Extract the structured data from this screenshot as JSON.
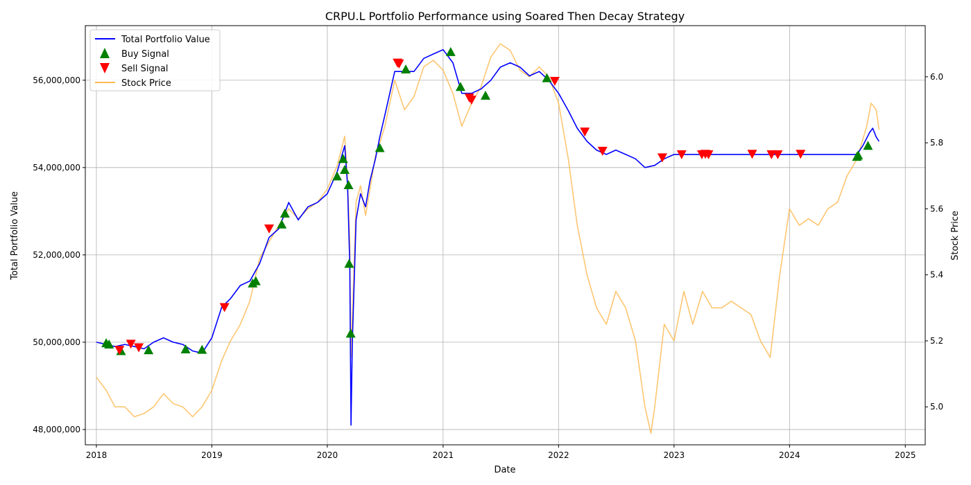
{
  "chart_data": {
    "type": "line",
    "title": "CRPU.L Portfolio Performance using Soared Then Decay Strategy",
    "xlabel": "Date",
    "ylabel_left": "Total Portfolio Value",
    "ylabel_right": "Stock Price",
    "x_range": [
      "2017-11-27",
      "2025-03-05"
    ],
    "y_left_range": [
      47650000,
      57250000
    ],
    "y_right_range": [
      4.885,
      6.155
    ],
    "x_ticks": [
      "2018",
      "2019",
      "2020",
      "2021",
      "2022",
      "2023",
      "2024",
      "2025"
    ],
    "y_left_ticks": [
      48000000,
      50000000,
      52000000,
      54000000,
      56000000
    ],
    "y_left_tick_labels": [
      "48,000,000",
      "50,000,000",
      "52,000,000",
      "54,000,000",
      "56,000,000"
    ],
    "y_right_ticks": [
      5.0,
      5.2,
      5.4,
      5.6,
      5.8,
      6.0
    ],
    "y_right_tick_labels": [
      "5.0",
      "5.2",
      "5.4",
      "5.6",
      "5.8",
      "6.0"
    ],
    "grid": true,
    "legend_position": "top-left",
    "legend": [
      "Total Portfolio Value",
      "Buy Signal",
      "Sell Signal",
      "Stock Price"
    ],
    "series": [
      {
        "name": "Total Portfolio Value",
        "axis": "left",
        "color": "#0000ff",
        "points": [
          [
            "2018-01-01",
            50000000
          ],
          [
            "2018-02-01",
            49950000
          ],
          [
            "2018-03-01",
            49900000
          ],
          [
            "2018-04-01",
            49950000
          ],
          [
            "2018-05-01",
            49900000
          ],
          [
            "2018-06-01",
            49850000
          ],
          [
            "2018-07-01",
            50000000
          ],
          [
            "2018-08-01",
            50100000
          ],
          [
            "2018-09-01",
            50000000
          ],
          [
            "2018-10-01",
            49950000
          ],
          [
            "2018-11-01",
            49800000
          ],
          [
            "2018-12-01",
            49750000
          ],
          [
            "2019-01-01",
            50100000
          ],
          [
            "2019-02-01",
            50800000
          ],
          [
            "2019-03-01",
            51000000
          ],
          [
            "2019-04-01",
            51300000
          ],
          [
            "2019-05-01",
            51400000
          ],
          [
            "2019-06-01",
            51800000
          ],
          [
            "2019-07-01",
            52400000
          ],
          [
            "2019-08-01",
            52600000
          ],
          [
            "2019-09-01",
            53200000
          ],
          [
            "2019-10-01",
            52800000
          ],
          [
            "2019-11-01",
            53100000
          ],
          [
            "2019-12-01",
            53200000
          ],
          [
            "2020-01-01",
            53400000
          ],
          [
            "2020-02-01",
            53900000
          ],
          [
            "2020-02-25",
            54500000
          ],
          [
            "2020-03-05",
            53600000
          ],
          [
            "2020-03-12",
            51800000
          ],
          [
            "2020-03-16",
            48100000
          ],
          [
            "2020-03-20",
            50000000
          ],
          [
            "2020-04-01",
            52800000
          ],
          [
            "2020-04-15",
            53400000
          ],
          [
            "2020-05-01",
            53100000
          ],
          [
            "2020-05-15",
            53700000
          ],
          [
            "2020-06-01",
            54200000
          ],
          [
            "2020-06-15",
            54700000
          ],
          [
            "2020-07-01",
            55200000
          ],
          [
            "2020-08-01",
            56200000
          ],
          [
            "2020-09-01",
            56200000
          ],
          [
            "2020-10-01",
            56200000
          ],
          [
            "2020-11-01",
            56500000
          ],
          [
            "2020-12-01",
            56600000
          ],
          [
            "2021-01-01",
            56700000
          ],
          [
            "2021-02-01",
            56400000
          ],
          [
            "2021-03-01",
            55700000
          ],
          [
            "2021-04-01",
            55700000
          ],
          [
            "2021-05-01",
            55800000
          ],
          [
            "2021-06-01",
            56000000
          ],
          [
            "2021-07-01",
            56300000
          ],
          [
            "2021-08-01",
            56400000
          ],
          [
            "2021-09-01",
            56300000
          ],
          [
            "2021-10-01",
            56100000
          ],
          [
            "2021-11-01",
            56200000
          ],
          [
            "2021-12-01",
            56000000
          ],
          [
            "2022-01-01",
            55700000
          ],
          [
            "2022-02-01",
            55300000
          ],
          [
            "2022-03-01",
            54900000
          ],
          [
            "2022-04-01",
            54600000
          ],
          [
            "2022-05-01",
            54400000
          ],
          [
            "2022-06-01",
            54300000
          ],
          [
            "2022-07-01",
            54400000
          ],
          [
            "2022-08-01",
            54300000
          ],
          [
            "2022-09-01",
            54200000
          ],
          [
            "2022-10-01",
            54000000
          ],
          [
            "2022-11-01",
            54050000
          ],
          [
            "2022-12-01",
            54200000
          ],
          [
            "2023-01-01",
            54300000
          ],
          [
            "2023-06-01",
            54300000
          ],
          [
            "2024-01-01",
            54300000
          ],
          [
            "2024-08-01",
            54300000
          ],
          [
            "2024-08-20",
            54500000
          ],
          [
            "2024-09-10",
            54800000
          ],
          [
            "2024-09-20",
            54900000
          ],
          [
            "2024-10-01",
            54700000
          ],
          [
            "2024-10-10",
            54600000
          ]
        ]
      },
      {
        "name": "Stock Price",
        "axis": "right",
        "color": "#fdb84d",
        "points": [
          [
            "2018-01-01",
            5.09
          ],
          [
            "2018-02-01",
            5.05
          ],
          [
            "2018-03-01",
            5.0
          ],
          [
            "2018-04-01",
            5.0
          ],
          [
            "2018-05-01",
            4.97
          ],
          [
            "2018-06-01",
            4.98
          ],
          [
            "2018-07-01",
            5.0
          ],
          [
            "2018-08-01",
            5.04
          ],
          [
            "2018-09-01",
            5.01
          ],
          [
            "2018-10-01",
            5.0
          ],
          [
            "2018-11-01",
            4.97
          ],
          [
            "2018-12-01",
            5.0
          ],
          [
            "2019-01-01",
            5.05
          ],
          [
            "2019-02-01",
            5.14
          ],
          [
            "2019-03-01",
            5.2
          ],
          [
            "2019-04-01",
            5.25
          ],
          [
            "2019-05-01",
            5.32
          ],
          [
            "2019-06-01",
            5.45
          ],
          [
            "2019-07-01",
            5.5
          ],
          [
            "2019-08-01",
            5.55
          ],
          [
            "2019-09-01",
            5.6
          ],
          [
            "2019-10-01",
            5.57
          ],
          [
            "2019-11-01",
            5.6
          ],
          [
            "2019-12-01",
            5.62
          ],
          [
            "2020-01-01",
            5.66
          ],
          [
            "2020-02-01",
            5.73
          ],
          [
            "2020-02-25",
            5.82
          ],
          [
            "2020-03-05",
            5.69
          ],
          [
            "2020-03-12",
            5.5
          ],
          [
            "2020-03-16",
            5.15
          ],
          [
            "2020-03-20",
            5.27
          ],
          [
            "2020-04-01",
            5.62
          ],
          [
            "2020-04-15",
            5.67
          ],
          [
            "2020-05-01",
            5.58
          ],
          [
            "2020-05-15",
            5.66
          ],
          [
            "2020-06-01",
            5.76
          ],
          [
            "2020-06-15",
            5.8
          ],
          [
            "2020-07-01",
            5.85
          ],
          [
            "2020-08-01",
            5.99
          ],
          [
            "2020-09-01",
            5.9
          ],
          [
            "2020-10-01",
            5.94
          ],
          [
            "2020-11-01",
            6.03
          ],
          [
            "2020-12-01",
            6.05
          ],
          [
            "2021-01-01",
            6.02
          ],
          [
            "2021-02-01",
            5.95
          ],
          [
            "2021-03-01",
            5.85
          ],
          [
            "2021-04-01",
            5.92
          ],
          [
            "2021-05-01",
            5.97
          ],
          [
            "2021-06-01",
            6.06
          ],
          [
            "2021-07-01",
            6.1
          ],
          [
            "2021-08-01",
            6.08
          ],
          [
            "2021-09-01",
            6.02
          ],
          [
            "2021-10-01",
            6.0
          ],
          [
            "2021-11-01",
            6.03
          ],
          [
            "2021-12-01",
            6.0
          ],
          [
            "2022-01-01",
            5.92
          ],
          [
            "2022-02-01",
            5.75
          ],
          [
            "2022-03-01",
            5.55
          ],
          [
            "2022-04-01",
            5.4
          ],
          [
            "2022-05-01",
            5.3
          ],
          [
            "2022-06-01",
            5.25
          ],
          [
            "2022-07-01",
            5.35
          ],
          [
            "2022-08-01",
            5.3
          ],
          [
            "2022-09-01",
            5.2
          ],
          [
            "2022-10-01",
            5.0
          ],
          [
            "2022-10-20",
            4.92
          ],
          [
            "2022-11-01",
            5.0
          ],
          [
            "2022-12-01",
            5.25
          ],
          [
            "2023-01-01",
            5.2
          ],
          [
            "2023-02-01",
            5.35
          ],
          [
            "2023-03-01",
            5.25
          ],
          [
            "2023-04-01",
            5.35
          ],
          [
            "2023-05-01",
            5.3
          ],
          [
            "2023-06-01",
            5.3
          ],
          [
            "2023-07-01",
            5.32
          ],
          [
            "2023-08-01",
            5.3
          ],
          [
            "2023-09-01",
            5.28
          ],
          [
            "2023-10-01",
            5.2
          ],
          [
            "2023-11-01",
            5.15
          ],
          [
            "2023-12-01",
            5.4
          ],
          [
            "2024-01-01",
            5.6
          ],
          [
            "2024-02-01",
            5.55
          ],
          [
            "2024-03-01",
            5.57
          ],
          [
            "2024-04-01",
            5.55
          ],
          [
            "2024-05-01",
            5.6
          ],
          [
            "2024-06-01",
            5.62
          ],
          [
            "2024-07-01",
            5.7
          ],
          [
            "2024-08-01",
            5.75
          ],
          [
            "2024-09-01",
            5.85
          ],
          [
            "2024-09-15",
            5.92
          ],
          [
            "2024-10-01",
            5.9
          ],
          [
            "2024-10-10",
            5.84
          ]
        ]
      }
    ],
    "buy_signals": [
      [
        "2018-02-01",
        49980000
      ],
      [
        "2018-02-10",
        49950000
      ],
      [
        "2018-03-20",
        49800000
      ],
      [
        "2018-06-15",
        49820000
      ],
      [
        "2018-10-10",
        49840000
      ],
      [
        "2018-12-01",
        49830000
      ],
      [
        "2019-05-10",
        51350000
      ],
      [
        "2019-05-20",
        51400000
      ],
      [
        "2019-08-10",
        52700000
      ],
      [
        "2019-08-20",
        52950000
      ],
      [
        "2020-02-01",
        53800000
      ],
      [
        "2020-02-20",
        54200000
      ],
      [
        "2020-02-25",
        53950000
      ],
      [
        "2020-03-08",
        53600000
      ],
      [
        "2020-03-10",
        51800000
      ],
      [
        "2020-03-15",
        50200000
      ],
      [
        "2020-06-15",
        54450000
      ],
      [
        "2020-09-05",
        56250000
      ],
      [
        "2021-01-25",
        56650000
      ],
      [
        "2021-02-25",
        55850000
      ],
      [
        "2021-05-15",
        55650000
      ],
      [
        "2021-11-25",
        56050000
      ],
      [
        "2024-08-01",
        54250000
      ],
      [
        "2024-08-05",
        54280000
      ],
      [
        "2024-09-05",
        54500000
      ]
    ],
    "sell_signals": [
      [
        "2018-03-15",
        49820000
      ],
      [
        "2018-04-20",
        49960000
      ],
      [
        "2018-05-15",
        49880000
      ],
      [
        "2019-02-10",
        50800000
      ],
      [
        "2019-07-01",
        52600000
      ],
      [
        "2020-08-10",
        56400000
      ],
      [
        "2020-08-15",
        56380000
      ],
      [
        "2021-03-25",
        55600000
      ],
      [
        "2021-04-01",
        55550000
      ],
      [
        "2021-12-20",
        55980000
      ],
      [
        "2022-03-25",
        54820000
      ],
      [
        "2022-05-20",
        54380000
      ],
      [
        "2022-11-25",
        54230000
      ],
      [
        "2023-01-25",
        54300000
      ],
      [
        "2023-03-30",
        54300000
      ],
      [
        "2023-04-10",
        54310000
      ],
      [
        "2023-04-20",
        54300000
      ],
      [
        "2023-09-05",
        54310000
      ],
      [
        "2023-11-05",
        54300000
      ],
      [
        "2023-11-25",
        54300000
      ],
      [
        "2024-02-05",
        54310000
      ]
    ]
  }
}
